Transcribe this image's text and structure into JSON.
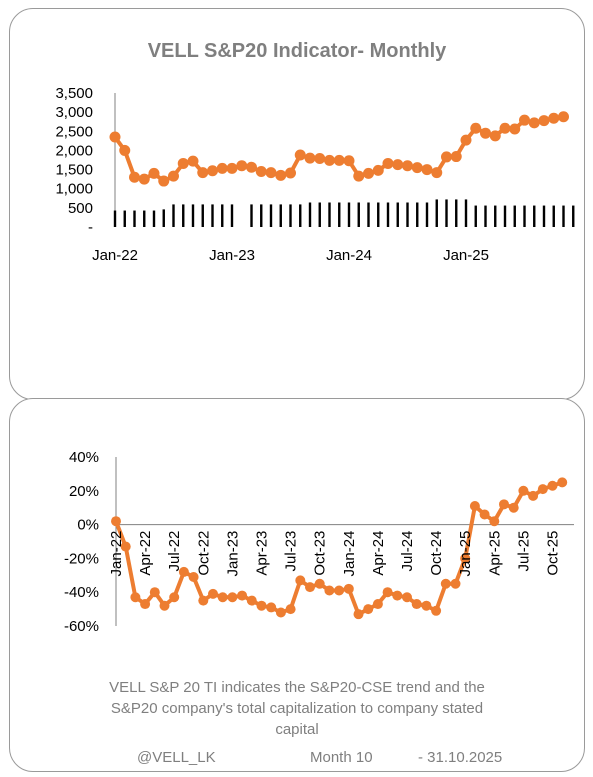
{
  "chart_data": [
    {
      "type": "line+bar",
      "title": "VELL S&P20 Indicator- Monthly",
      "ylim": [
        0,
        3500
      ],
      "y_ticks": [
        0,
        500,
        1000,
        1500,
        2000,
        2500,
        3000,
        3500
      ],
      "y_tick_labels": [
        "-",
        "500",
        "1,000",
        "1,500",
        "2,000",
        "2,500",
        "3,000",
        "3,500"
      ],
      "x_tick_labels": [
        "Jan-22",
        "Jan-23",
        "Jan-24",
        "Jan-25"
      ],
      "x_tick_index": [
        0,
        12,
        24,
        36
      ],
      "grid": false,
      "legend": "none",
      "series": [
        {
          "type": "line",
          "color": "#ed7d31",
          "values": [
            2350,
            2000,
            1300,
            1250,
            1400,
            1200,
            1330,
            1660,
            1720,
            1420,
            1470,
            1530,
            1530,
            1600,
            1560,
            1450,
            1420,
            1350,
            1410,
            1880,
            1800,
            1790,
            1740,
            1740,
            1730,
            1330,
            1400,
            1480,
            1660,
            1630,
            1600,
            1550,
            1500,
            1420,
            1830,
            1840,
            2270,
            2580,
            2450,
            2380,
            2580,
            2560,
            2790,
            2720,
            2780,
            2840,
            2880
          ]
        },
        {
          "type": "bar",
          "color": "#000000",
          "values": [
            430,
            430,
            430,
            430,
            430,
            460,
            590,
            590,
            590,
            590,
            590,
            590,
            590,
            0,
            590,
            590,
            590,
            590,
            590,
            590,
            640,
            640,
            640,
            640,
            640,
            640,
            640,
            640,
            640,
            640,
            640,
            640,
            640,
            720,
            720,
            720,
            720,
            560,
            560,
            560,
            560,
            560,
            560,
            560,
            560,
            560,
            560,
            560
          ]
        }
      ]
    },
    {
      "type": "line",
      "ylim": [
        -60,
        40
      ],
      "y_ticks": [
        -60,
        -40,
        -20,
        0,
        20,
        40
      ],
      "y_tick_labels": [
        "-60%",
        "-40%",
        "-20%",
        "0%",
        "20%",
        "40%"
      ],
      "x_tick_labels": [
        "Jan-22",
        "Apr-22",
        "Jul-22",
        "Oct-22",
        "Jan-23",
        "Apr-23",
        "Jul-23",
        "Oct-23",
        "Jan-24",
        "Apr-24",
        "Jul-24",
        "Oct-24",
        "Jan-25",
        "Apr-25",
        "Jul-25",
        "Oct-25"
      ],
      "x_tick_index": [
        0,
        3,
        6,
        9,
        12,
        15,
        18,
        21,
        24,
        27,
        30,
        33,
        36,
        39,
        42,
        45
      ],
      "grid": false,
      "legend": "none",
      "series": [
        {
          "color": "#ed7d31",
          "values": [
            2,
            -13,
            -43,
            -47,
            -40,
            -48,
            -43,
            -28,
            -31,
            -45,
            -41,
            -43,
            -43,
            -42,
            -45,
            -48,
            -49,
            -52,
            -50,
            -33,
            -37,
            -35,
            -39,
            -39,
            -38,
            -53,
            -50,
            -47,
            -40,
            -42,
            -43,
            -47,
            -48,
            -51,
            -35,
            -35,
            -20,
            11,
            6,
            2,
            12,
            10,
            20,
            17,
            21,
            23,
            25
          ]
        }
      ]
    }
  ],
  "caption": {
    "line1": "VELL S&P 20 TI indicates the S&P20-CSE trend and the",
    "line2": "S&P20 company's total capitalization to company stated",
    "line3": "capital"
  },
  "footer": {
    "handle": "@VELL_LK",
    "month": "Month 10",
    "date": "- 31.10.2025"
  }
}
